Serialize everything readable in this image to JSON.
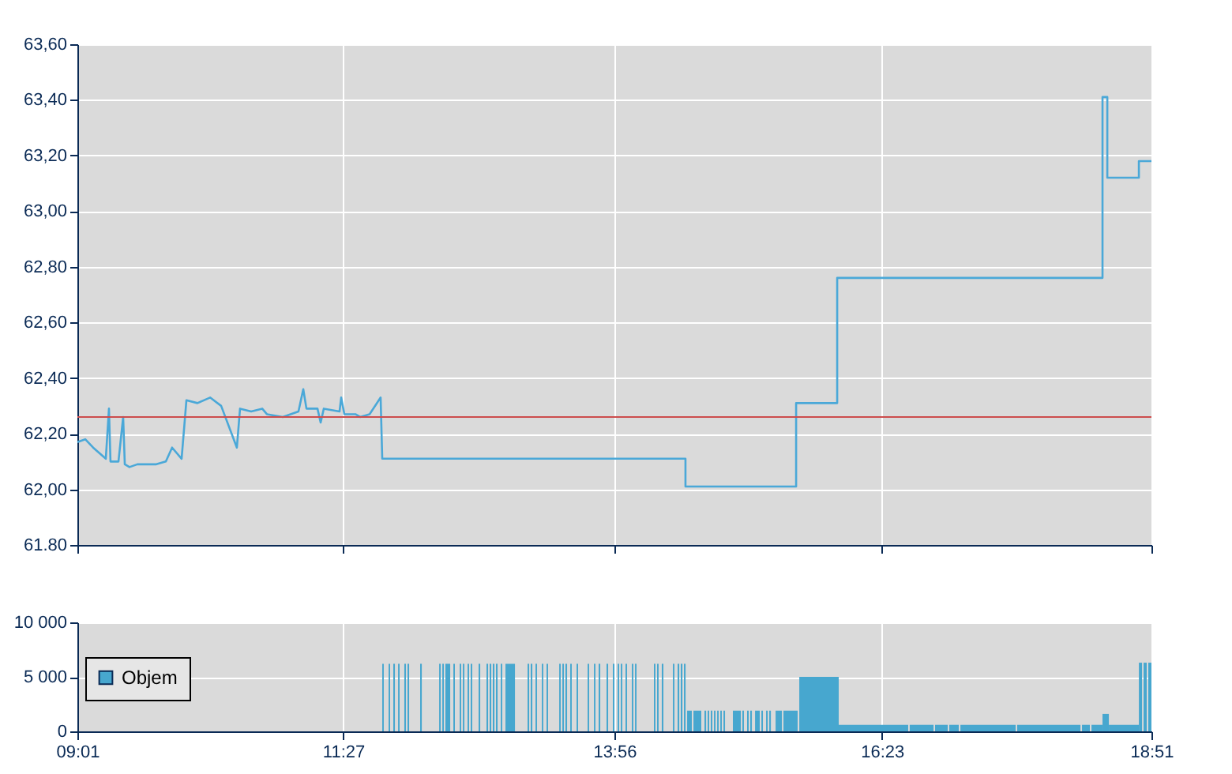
{
  "chart_data": [
    {
      "type": "line",
      "xlim": [
        9.017,
        18.85
      ],
      "xticks": [
        {
          "value": 9.017,
          "label": null
        },
        {
          "value": 11.45,
          "label": null
        },
        {
          "value": 13.933,
          "label": null
        },
        {
          "value": 16.383,
          "label": null
        },
        {
          "value": 18.85,
          "label": null
        }
      ],
      "ylim": [
        61.8,
        63.6
      ],
      "yticks": [
        {
          "value": 61.8,
          "label": "61.80"
        },
        {
          "value": 62.0,
          "label": "62,00"
        },
        {
          "value": 62.2,
          "label": "62,20"
        },
        {
          "value": 62.4,
          "label": "62,40"
        },
        {
          "value": 62.6,
          "label": "62,60"
        },
        {
          "value": 62.8,
          "label": "62,80"
        },
        {
          "value": 63.0,
          "label": "63,00"
        },
        {
          "value": 63.2,
          "label": "63,20"
        },
        {
          "value": 63.4,
          "label": "63,40"
        },
        {
          "value": 63.6,
          "label": "63,60"
        }
      ],
      "grid": true,
      "tick_labels": "y",
      "ref_lines": [
        {
          "axis": "y",
          "value": 62.26,
          "color": "#cc4c4c"
        }
      ],
      "series": [
        {
          "color": "#4aa8d8",
          "x": [
            9.017,
            9.089,
            9.161,
            9.219,
            9.277,
            9.306,
            9.32,
            9.393,
            9.436,
            9.451,
            9.494,
            9.566,
            9.74,
            9.827,
            9.884,
            9.971,
            10.015,
            10.116,
            10.232,
            10.333,
            10.477,
            10.506,
            10.608,
            10.709,
            10.752,
            10.897,
            11.041,
            11.085,
            11.114,
            11.215,
            11.244,
            11.273,
            11.417,
            11.432,
            11.461,
            11.562,
            11.606,
            11.692,
            11.793,
            11.808,
            14.584,
            14.584,
            15.597,
            15.597,
            15.973,
            15.973,
            18.402,
            18.402,
            18.446,
            18.446,
            18.735,
            18.735,
            18.85
          ],
          "values": [
            62.17,
            62.18,
            62.15,
            62.13,
            62.11,
            62.29,
            62.1,
            62.1,
            62.26,
            62.09,
            62.08,
            62.09,
            62.09,
            62.1,
            62.15,
            62.11,
            62.32,
            62.31,
            62.33,
            62.3,
            62.15,
            62.29,
            62.28,
            62.29,
            62.27,
            62.26,
            62.28,
            62.36,
            62.29,
            62.29,
            62.24,
            62.29,
            62.28,
            62.33,
            62.27,
            62.27,
            62.26,
            62.27,
            62.33,
            62.11,
            62.11,
            62.01,
            62.01,
            62.31,
            62.31,
            62.76,
            62.76,
            63.41,
            63.41,
            63.12,
            63.12,
            63.18,
            63.18
          ]
        }
      ]
    },
    {
      "type": "histogram",
      "xlim": [
        9.017,
        18.85
      ],
      "xticks": [
        {
          "value": 9.017,
          "label": "09:01"
        },
        {
          "value": 11.45,
          "label": "11:27"
        },
        {
          "value": 13.933,
          "label": "13:56"
        },
        {
          "value": 16.383,
          "label": "16:23"
        },
        {
          "value": 18.85,
          "label": "18:51"
        }
      ],
      "ylim": [
        0,
        10000
      ],
      "yticks": [
        {
          "value": 0,
          "label": "0"
        },
        {
          "value": 5000,
          "label": "5 000"
        },
        {
          "value": 10000,
          "label": "10 000"
        }
      ],
      "grid": true,
      "legend": "left",
      "bins": [
        11.808,
        11.822,
        11.866,
        11.88,
        11.909,
        11.924,
        11.953,
        11.967,
        12.01,
        12.025,
        12.039,
        12.054,
        12.155,
        12.17,
        12.329,
        12.343,
        12.358,
        12.372,
        12.386,
        12.43,
        12.459,
        12.473,
        12.517,
        12.531,
        12.546,
        12.56,
        12.589,
        12.603,
        12.618,
        12.632,
        12.69,
        12.705,
        12.762,
        12.777,
        12.791,
        12.806,
        12.82,
        12.835,
        12.849,
        12.864,
        12.893,
        12.907,
        12.936,
        13.023,
        13.138,
        13.153,
        13.167,
        13.182,
        13.211,
        13.225,
        13.269,
        13.283,
        13.312,
        13.326,
        13.428,
        13.442,
        13.457,
        13.471,
        13.485,
        13.5,
        13.529,
        13.543,
        13.587,
        13.601,
        13.688,
        13.702,
        13.746,
        13.76,
        13.789,
        13.804,
        13.861,
        13.876,
        13.919,
        13.934,
        13.963,
        13.977,
        13.992,
        14.006,
        14.035,
        14.049,
        14.093,
        14.107,
        14.122,
        14.136,
        14.295,
        14.309,
        14.324,
        14.338,
        14.367,
        14.382,
        14.469,
        14.483,
        14.512,
        14.527,
        14.541,
        14.556,
        14.57,
        14.585,
        14.599,
        14.642,
        14.657,
        14.729,
        14.758,
        14.773,
        14.787,
        14.801,
        14.816,
        14.83,
        14.845,
        14.859,
        14.874,
        14.888,
        14.903,
        14.917,
        14.932,
        14.946,
        15.018,
        15.091,
        15.105,
        15.119,
        15.148,
        15.163,
        15.177,
        15.192,
        15.221,
        15.264,
        15.279,
        15.293,
        15.322,
        15.337,
        15.351,
        15.366,
        15.409,
        15.467,
        15.481,
        15.611,
        15.626,
        15.987,
        16.623,
        16.637,
        16.855,
        16.869,
        16.985,
        16.999,
        17.086,
        17.101,
        17.607,
        17.621,
        18.2,
        18.214,
        18.286,
        18.301,
        18.402,
        18.46,
        18.735,
        18.764,
        18.778,
        18.807,
        18.821,
        18.85
      ],
      "series": [
        {
          "name": "Objem",
          "color": "#47a7cf",
          "values": [
            6200,
            null,
            6200,
            null,
            6200,
            null,
            6200,
            null,
            6200,
            null,
            6200,
            null,
            6200,
            null,
            6200,
            null,
            6200,
            null,
            6200,
            null,
            6200,
            null,
            6200,
            null,
            6200,
            null,
            6200,
            null,
            6200,
            null,
            6200,
            null,
            6200,
            null,
            6200,
            null,
            6200,
            null,
            6200,
            null,
            6200,
            null,
            6200,
            null,
            6200,
            null,
            6200,
            null,
            6200,
            null,
            6200,
            null,
            6200,
            null,
            6200,
            null,
            6200,
            null,
            6200,
            null,
            6200,
            null,
            6200,
            null,
            6200,
            null,
            6200,
            null,
            6200,
            null,
            6200,
            null,
            6200,
            null,
            6200,
            null,
            6200,
            null,
            6200,
            null,
            6200,
            null,
            6200,
            null,
            6200,
            null,
            6200,
            null,
            6200,
            null,
            6200,
            null,
            6200,
            null,
            6200,
            null,
            6200,
            null,
            1900,
            null,
            1900,
            null,
            1900,
            null,
            1900,
            null,
            1900,
            null,
            1900,
            null,
            1900,
            null,
            1900,
            null,
            1900,
            null,
            1900,
            null,
            1900,
            null,
            1900,
            null,
            1900,
            null,
            1900,
            null,
            1900,
            null,
            1900,
            null,
            1900,
            null,
            1900,
            null,
            1900,
            null,
            5000,
            600,
            null,
            600,
            null,
            600,
            null,
            600,
            null,
            600,
            null,
            600,
            null,
            600,
            null,
            600,
            1600,
            600,
            6300,
            null,
            6300,
            null,
            6300
          ]
        }
      ]
    }
  ]
}
